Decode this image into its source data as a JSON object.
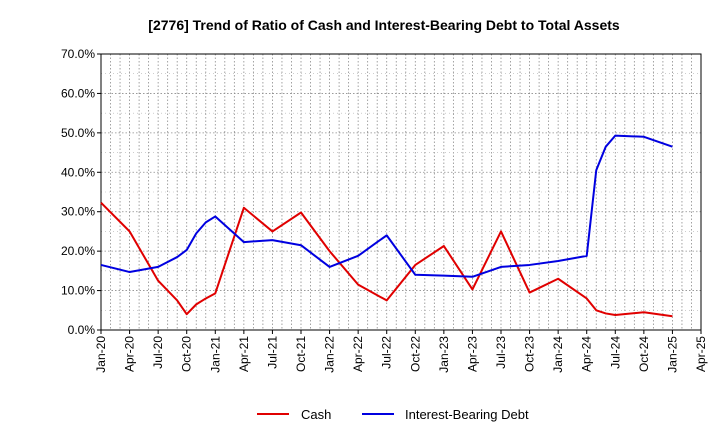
{
  "chart_data": {
    "type": "line",
    "title": "[2776]  Trend of Ratio of Cash and Interest-Bearing Debt to Total Assets",
    "xlabel": "",
    "ylabel": "",
    "ylim": [
      0,
      70
    ],
    "yticks": [
      0,
      10,
      20,
      30,
      40,
      50,
      60,
      70
    ],
    "ytick_labels": [
      "0.0%",
      "10.0%",
      "20.0%",
      "30.0%",
      "40.0%",
      "50.0%",
      "60.0%",
      "70.0%"
    ],
    "xticks": [
      "Jan-20",
      "Apr-20",
      "Jul-20",
      "Oct-20",
      "Jan-21",
      "Apr-21",
      "Jul-21",
      "Oct-21",
      "Jan-22",
      "Apr-22",
      "Jul-22",
      "Oct-22",
      "Jan-23",
      "Apr-23",
      "Jul-23",
      "Oct-23",
      "Jan-24",
      "Apr-24",
      "Jul-24",
      "Oct-24",
      "Jan-25",
      "Apr-25"
    ],
    "x_unit": "month",
    "grid": true,
    "legend_position": "bottom",
    "series": [
      {
        "name": "Cash",
        "color": "#e00000",
        "points": [
          [
            "Jan-20",
            32.3
          ],
          [
            "Apr-20",
            25.0
          ],
          [
            "Jul-20",
            12.5
          ],
          [
            "Sep-20",
            7.5
          ],
          [
            "Oct-20",
            4.0
          ],
          [
            "Nov-20",
            6.5
          ],
          [
            "Dec-20",
            8.0
          ],
          [
            "Jan-21",
            9.3
          ],
          [
            "Apr-21",
            31.0
          ],
          [
            "Jul-21",
            25.0
          ],
          [
            "Oct-21",
            29.8
          ],
          [
            "Jan-22",
            20.0
          ],
          [
            "Apr-22",
            11.5
          ],
          [
            "Jul-22",
            7.5
          ],
          [
            "Oct-22",
            16.5
          ],
          [
            "Jan-23",
            21.3
          ],
          [
            "Apr-23",
            10.3
          ],
          [
            "Jul-23",
            25.0
          ],
          [
            "Oct-23",
            9.5
          ],
          [
            "Jan-24",
            13.0
          ],
          [
            "Apr-24",
            8.0
          ],
          [
            "May-24",
            5.0
          ],
          [
            "Jun-24",
            4.2
          ],
          [
            "Jul-24",
            3.8
          ],
          [
            "Oct-24",
            4.5
          ],
          [
            "Jan-25",
            3.5
          ]
        ]
      },
      {
        "name": "Interest-Bearing Debt",
        "color": "#0000e0",
        "points": [
          [
            "Jan-20",
            16.5
          ],
          [
            "Apr-20",
            14.7
          ],
          [
            "Jul-20",
            16.0
          ],
          [
            "Sep-20",
            18.5
          ],
          [
            "Oct-20",
            20.3
          ],
          [
            "Nov-20",
            24.5
          ],
          [
            "Dec-20",
            27.3
          ],
          [
            "Jan-21",
            28.8
          ],
          [
            "Apr-21",
            22.3
          ],
          [
            "Jul-21",
            22.8
          ],
          [
            "Oct-21",
            21.5
          ],
          [
            "Jan-22",
            16.0
          ],
          [
            "Apr-22",
            18.8
          ],
          [
            "Jun-22",
            22.3
          ],
          [
            "Jul-22",
            24.0
          ],
          [
            "Oct-22",
            14.0
          ],
          [
            "Jan-23",
            13.8
          ],
          [
            "Apr-23",
            13.5
          ],
          [
            "Jul-23",
            16.0
          ],
          [
            "Oct-23",
            16.5
          ],
          [
            "Jan-24",
            17.5
          ],
          [
            "Apr-24",
            18.8
          ],
          [
            "May-24",
            40.5
          ],
          [
            "Jun-24",
            46.5
          ],
          [
            "Jul-24",
            49.3
          ],
          [
            "Oct-24",
            49.0
          ],
          [
            "Jan-25",
            46.5
          ]
        ]
      }
    ]
  }
}
